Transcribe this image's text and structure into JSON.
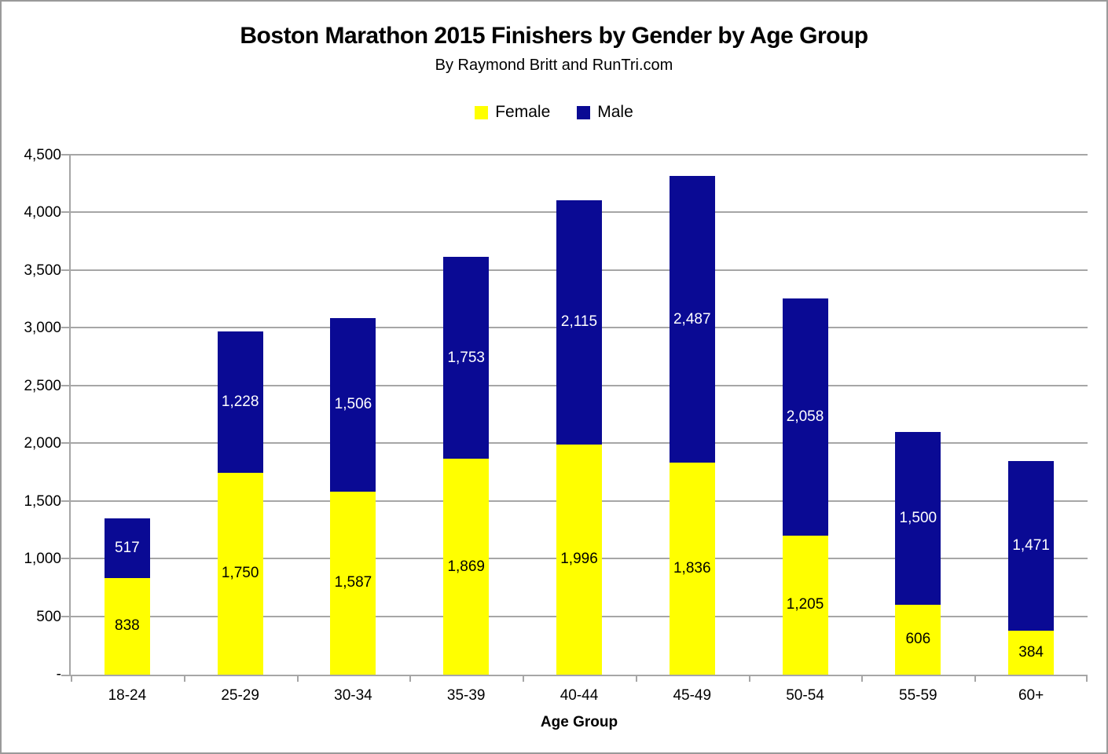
{
  "header": {
    "title": "Boston Marathon 2015 Finishers by Gender by Age Group",
    "subtitle": "By Raymond Britt and RunTri.com"
  },
  "chart_data": {
    "type": "bar",
    "stacked": true,
    "title": "Boston Marathon 2015 Finishers by Gender by Age Group",
    "subtitle": "By Raymond Britt and RunTri.com",
    "xlabel": "Age Group",
    "ylabel": "",
    "categories": [
      "18-24",
      "25-29",
      "30-34",
      "35-39",
      "40-44",
      "45-49",
      "50-54",
      "55-59",
      "60+"
    ],
    "series": [
      {
        "name": "Female",
        "color": "#ffff00",
        "label_color": "#000000",
        "values": [
          838,
          1750,
          1587,
          1869,
          1996,
          1836,
          1205,
          606,
          384
        ]
      },
      {
        "name": "Male",
        "color": "#0a0a94",
        "label_color": "#ffffff",
        "values": [
          517,
          1228,
          1506,
          1753,
          2115,
          2487,
          2058,
          1500,
          1471
        ]
      }
    ],
    "ylim": [
      0,
      4500
    ],
    "ytick_step": 500,
    "ytick_labels": [
      "-",
      "500",
      "1,000",
      "1,500",
      "2,000",
      "2,500",
      "3,000",
      "3,500",
      "4,000",
      "4,500"
    ],
    "grid": true,
    "legend_position": "top",
    "gridline_color": "#a6a6a6",
    "value_label_format": "thousands-comma"
  }
}
